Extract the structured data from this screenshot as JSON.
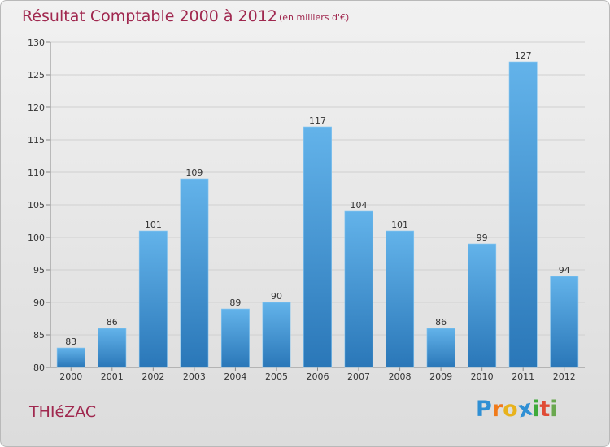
{
  "title": "Résultat Comptable 2000 à 2012",
  "unit_note": "(en milliers d'€)",
  "commune": "THIéZAC",
  "brand": {
    "letters": [
      "P",
      "r",
      "o",
      "x",
      "i",
      "t",
      "i"
    ],
    "colors": [
      "#2f8fd4",
      "#f07a1a",
      "#e8b21c",
      "#2f8fd4",
      "#3faa3a",
      "#e04b35",
      "#6aa84f"
    ]
  },
  "colors": {
    "bar_light": "#63b3ea",
    "bar_dark": "#2a77b8",
    "axis": "#888888",
    "grid": "#d0d0d0"
  },
  "chart_data": {
    "type": "bar",
    "title": "Résultat Comptable 2000 à 2012",
    "xlabel": "",
    "ylabel": "",
    "categories": [
      "2000",
      "2001",
      "2002",
      "2003",
      "2004",
      "2005",
      "2006",
      "2007",
      "2008",
      "2009",
      "2010",
      "2011",
      "2012"
    ],
    "values": [
      83,
      86,
      101,
      109,
      89,
      90,
      117,
      104,
      101,
      86,
      99,
      127,
      94
    ],
    "ylim": [
      80,
      130
    ],
    "yticks": [
      80,
      85,
      90,
      95,
      100,
      105,
      110,
      115,
      120,
      125,
      130
    ],
    "grid": true
  }
}
